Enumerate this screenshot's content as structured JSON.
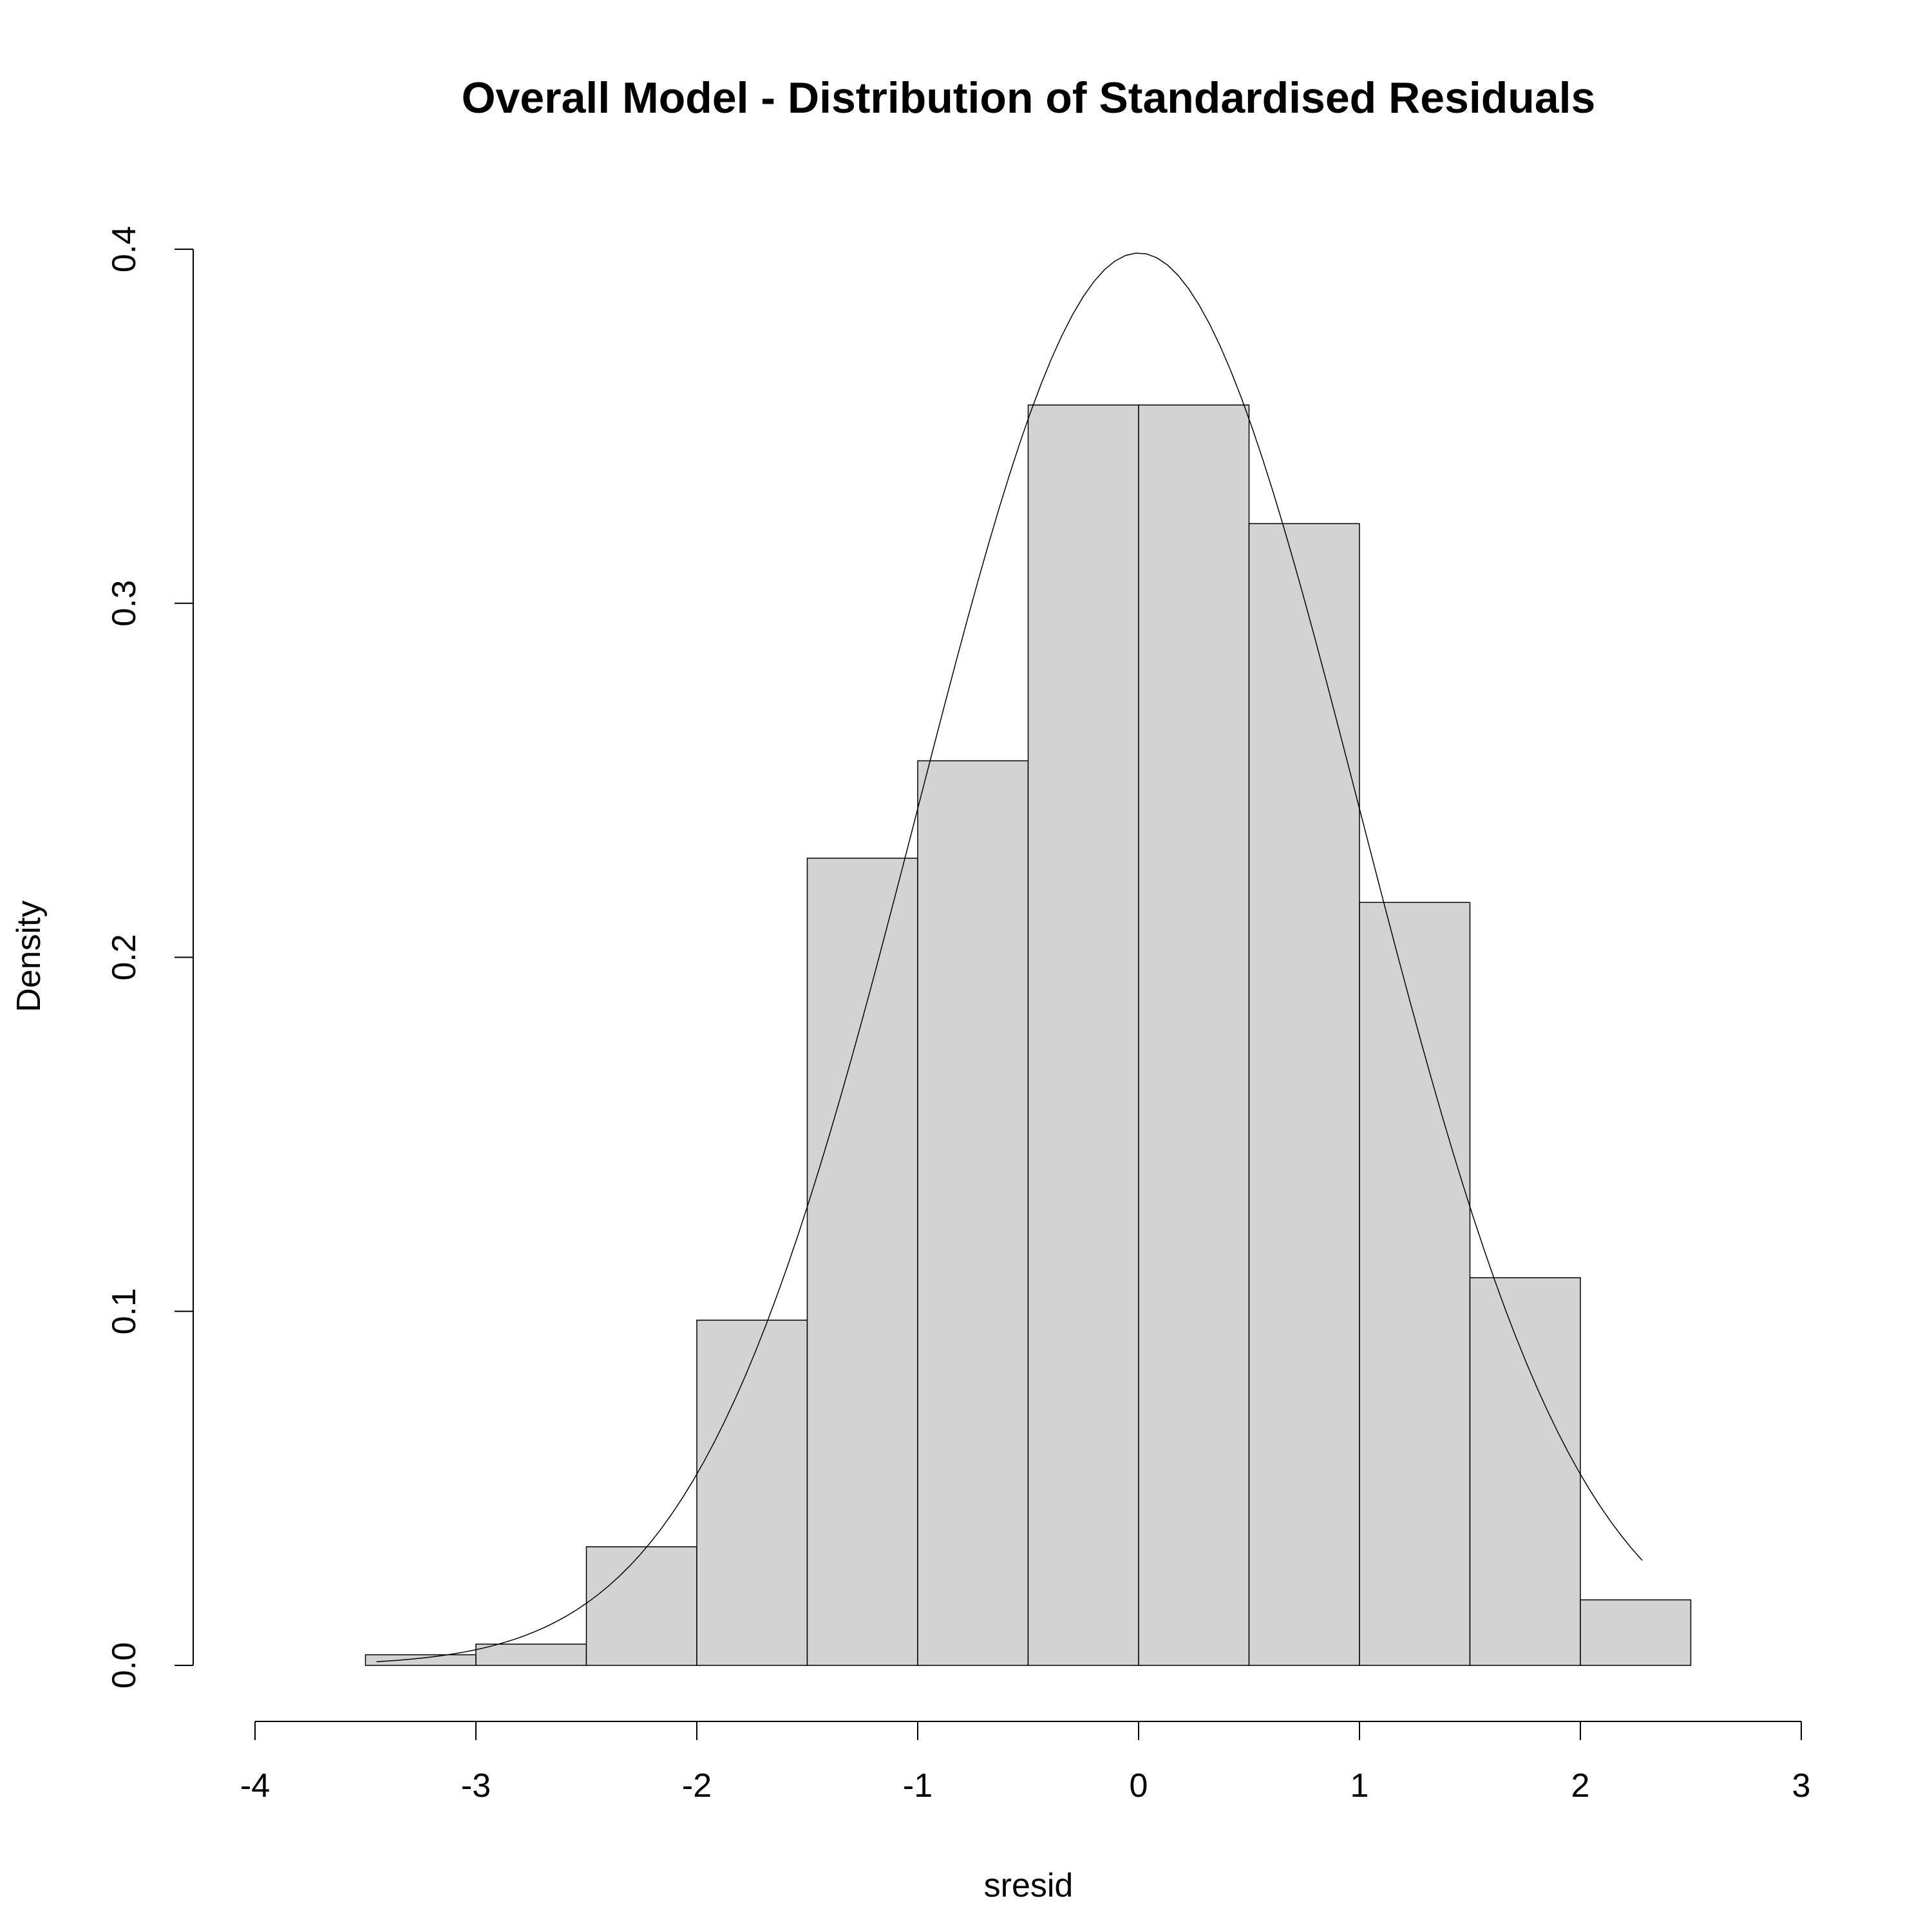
{
  "chart_data": {
    "type": "bar",
    "title": "Overall Model - Distribution of Standardised Residuals",
    "xlabel": "sresid",
    "ylabel": "Density",
    "xlim": [
      -4,
      3
    ],
    "ylim": [
      0,
      0.4
    ],
    "x_ticks": [
      -4,
      -3,
      -2,
      -1,
      0,
      1,
      2,
      3
    ],
    "x_tick_labels": [
      "-4",
      "-3",
      "-2",
      "-1",
      "0",
      "1",
      "2",
      "3"
    ],
    "y_ticks": [
      0.0,
      0.1,
      0.2,
      0.3,
      0.4
    ],
    "y_tick_labels": [
      "0.0",
      "0.1",
      "0.2",
      "0.3",
      "0.4"
    ],
    "grid": false,
    "bins": [
      {
        "x0": -3.5,
        "x1": -3.0,
        "density": 0.003
      },
      {
        "x0": -3.0,
        "x1": -2.5,
        "density": 0.006
      },
      {
        "x0": -2.5,
        "x1": -2.0,
        "density": 0.0335
      },
      {
        "x0": -2.0,
        "x1": -1.5,
        "density": 0.0975
      },
      {
        "x0": -1.5,
        "x1": -1.0,
        "density": 0.228
      },
      {
        "x0": -1.0,
        "x1": -0.5,
        "density": 0.2555
      },
      {
        "x0": -0.5,
        "x1": 0.0,
        "density": 0.356
      },
      {
        "x0": 0.0,
        "x1": 0.5,
        "density": 0.356
      },
      {
        "x0": 0.5,
        "x1": 1.0,
        "density": 0.3225
      },
      {
        "x0": 1.0,
        "x1": 1.5,
        "density": 0.2155
      },
      {
        "x0": 1.5,
        "x1": 2.0,
        "density": 0.1095
      },
      {
        "x0": 2.0,
        "x1": 2.5,
        "density": 0.0185
      }
    ],
    "curve": {
      "type": "line",
      "x_range": [
        -3.45,
        2.28
      ],
      "mean": 0,
      "sd": 1
    },
    "colors": {
      "bar_fill": "#d3d3d3",
      "stroke": "#000000"
    }
  }
}
